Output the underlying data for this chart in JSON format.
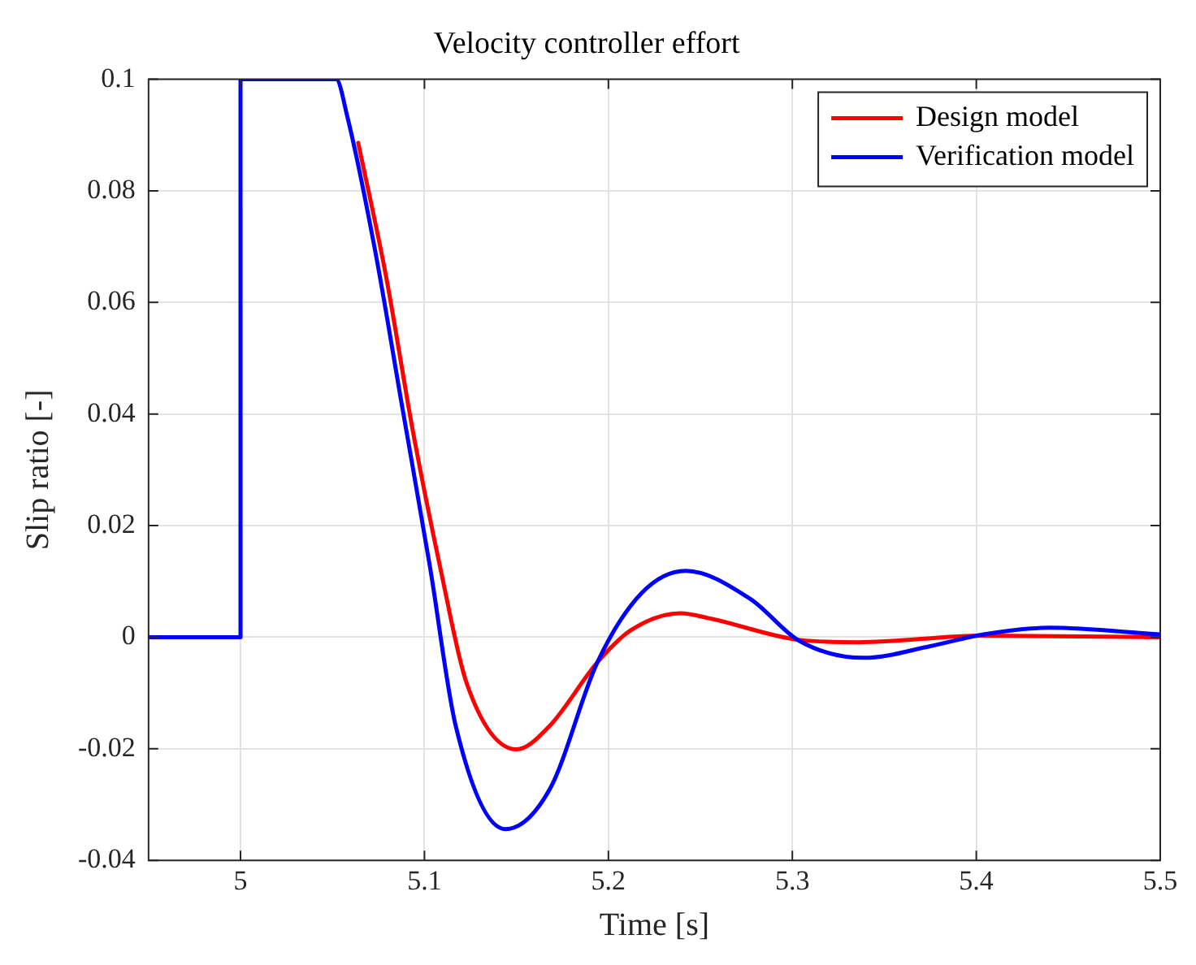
{
  "chart_data": {
    "type": "line",
    "title": "Velocity controller effort",
    "xlabel": "Time [s]",
    "ylabel": "Slip ratio [-]",
    "xlim": [
      4.95,
      5.5
    ],
    "xticks": [
      5,
      5.1,
      5.2,
      5.3,
      5.4,
      5.5
    ],
    "ylim": [
      -0.04,
      0.1
    ],
    "yticks": [
      -0.04,
      -0.02,
      0,
      0.02,
      0.04,
      0.06,
      0.08,
      0.1
    ],
    "grid": true,
    "legend": "top right",
    "marker": "none",
    "line_style": "solid",
    "series": [
      {
        "name": "Design model",
        "color": "#ff0000",
        "x": [
          5.064,
          5.079,
          5.094,
          5.1085,
          5.123,
          5.15,
          5.168,
          5.194,
          5.212,
          5.239,
          5.256,
          5.304,
          5.336,
          5.404,
          5.5
        ],
        "values": [
          0.0886,
          0.0649,
          0.0364,
          0.0126,
          -0.0083,
          -0.0201,
          -0.0159,
          -0.0045,
          0.0012,
          0.0043,
          0.0033,
          -0.0005,
          -0.0009,
          0.0003,
          0
        ]
      },
      {
        "name": "Verification model",
        "color": "#0000ff",
        "x": [
          4.95,
          5.0,
          5.0,
          5.052,
          5.058,
          5.073,
          5.088,
          5.103,
          5.117,
          5.144,
          5.168,
          5.194,
          5.218,
          5.242,
          5.277,
          5.304,
          5.339,
          5.375,
          5.404,
          5.44,
          5.5
        ],
        "values": [
          0,
          0,
          0.1,
          0.1,
          0.0934,
          0.0696,
          0.0411,
          0.0126,
          -0.0159,
          -0.0344,
          -0.0273,
          -0.0045,
          0.0079,
          0.0119,
          0.0069,
          -0.0007,
          -0.0037,
          -0.0016,
          0.0005,
          0.0017,
          0.0005
        ]
      }
    ]
  }
}
